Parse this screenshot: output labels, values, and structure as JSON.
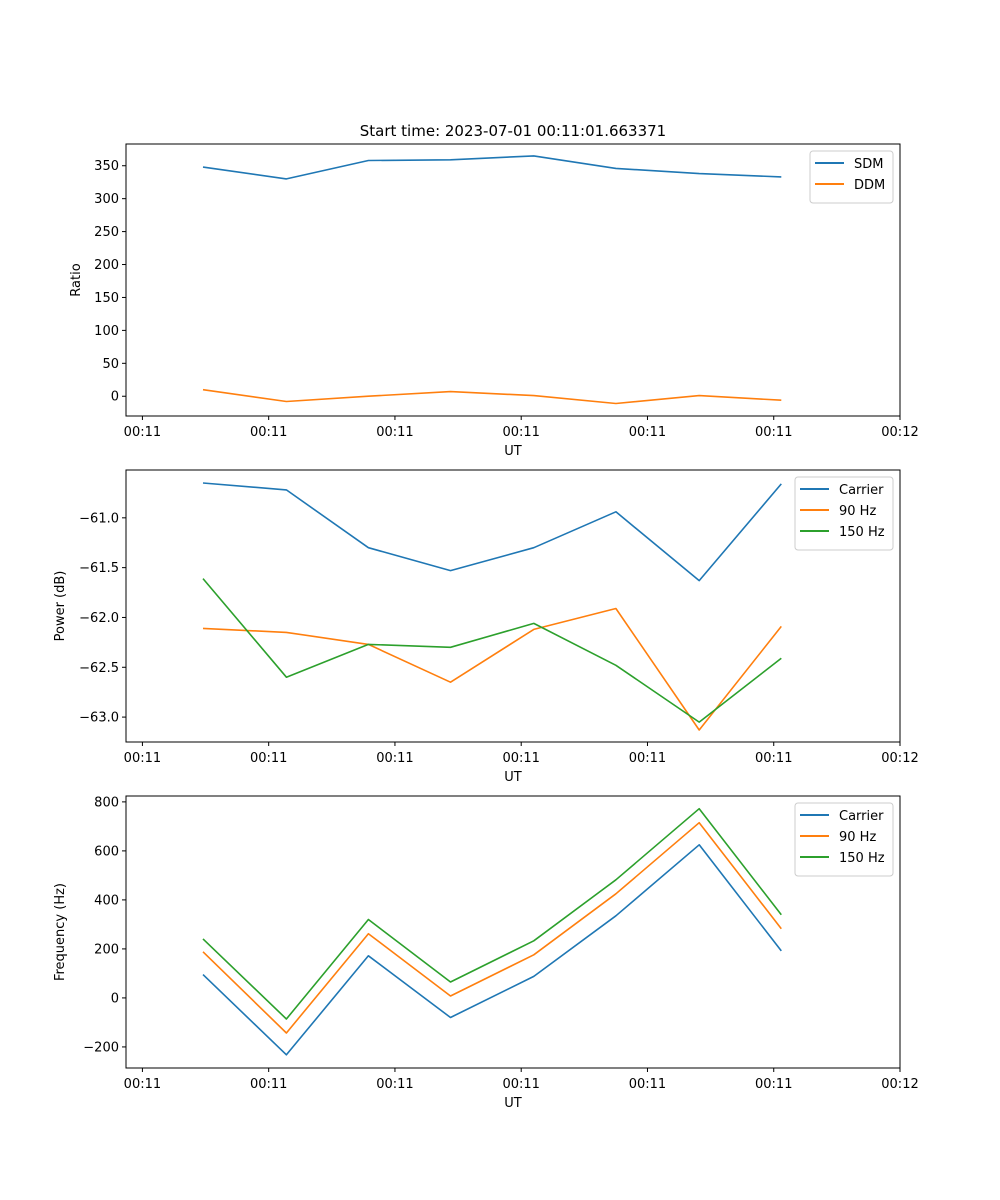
{
  "figure": {
    "title": "Start time: 2023-07-01 00:11:01.663371"
  },
  "chart_data": [
    {
      "type": "line",
      "title": "Start time: 2023-07-01 00:11:01.663371",
      "xlabel": "UT",
      "ylabel": "Ratio",
      "x_tick_labels": [
        "00:11",
        "00:11",
        "00:11",
        "00:11",
        "00:11",
        "00:11",
        "00:12"
      ],
      "x_range": [
        -0.13,
        6.0
      ],
      "x": [
        0.48,
        1.14,
        1.79,
        2.44,
        3.1,
        3.75,
        4.41,
        5.06
      ],
      "ylim": [
        -30,
        383
      ],
      "y_ticks": [
        0,
        50,
        100,
        150,
        200,
        250,
        300,
        350
      ],
      "y_tick_labels": [
        "0",
        "50",
        "100",
        "150",
        "200",
        "250",
        "300",
        "350"
      ],
      "grid": false,
      "legend": "top-right",
      "series": [
        {
          "name": "SDM",
          "color": "#1f77b4",
          "values": [
            348,
            330,
            358,
            359,
            365,
            346,
            338,
            333
          ]
        },
        {
          "name": "DDM",
          "color": "#ff7f0e",
          "values": [
            10,
            -8,
            0,
            7,
            1,
            -11,
            1,
            -6
          ]
        }
      ]
    },
    {
      "type": "line",
      "title": "",
      "xlabel": "UT",
      "ylabel": "Power (dB)",
      "x_tick_labels": [
        "00:11",
        "00:11",
        "00:11",
        "00:11",
        "00:11",
        "00:11",
        "00:12"
      ],
      "x_range": [
        -0.13,
        6.0
      ],
      "x": [
        0.48,
        1.14,
        1.79,
        2.44,
        3.1,
        3.75,
        4.41,
        5.06
      ],
      "ylim": [
        -63.25,
        -60.52
      ],
      "y_ticks": [
        -61.0,
        -61.5,
        -62.0,
        -62.5,
        -63.0
      ],
      "y_tick_labels": [
        "−61.0",
        "−61.5",
        "−62.0",
        "−62.5",
        "−63.0"
      ],
      "grid": false,
      "legend": "top-right",
      "series": [
        {
          "name": "Carrier",
          "color": "#1f77b4",
          "values": [
            -60.65,
            -60.72,
            -61.3,
            -61.53,
            -61.3,
            -60.94,
            -61.63,
            -60.66
          ]
        },
        {
          "name": "90 Hz",
          "color": "#ff7f0e",
          "values": [
            -62.11,
            -62.15,
            -62.27,
            -62.65,
            -62.12,
            -61.91,
            -63.13,
            -62.09
          ]
        },
        {
          "name": "150 Hz",
          "color": "#2ca02c",
          "values": [
            -61.61,
            -62.6,
            -62.27,
            -62.3,
            -62.06,
            -62.48,
            -63.05,
            -62.41
          ]
        }
      ]
    },
    {
      "type": "line",
      "title": "",
      "xlabel": "UT",
      "ylabel": "Frequency (Hz)",
      "x_tick_labels": [
        "00:11",
        "00:11",
        "00:11",
        "00:11",
        "00:11",
        "00:11",
        "00:12"
      ],
      "x_range": [
        -0.13,
        6.0
      ],
      "x": [
        0.48,
        1.14,
        1.79,
        2.44,
        3.1,
        3.75,
        4.41,
        5.06
      ],
      "ylim": [
        -286,
        824
      ],
      "y_ticks": [
        -200,
        0,
        200,
        400,
        600,
        800
      ],
      "y_tick_labels": [
        "−200",
        "0",
        "200",
        "400",
        "600",
        "800"
      ],
      "grid": false,
      "legend": "top-right",
      "series": [
        {
          "name": "Carrier",
          "color": "#1f77b4",
          "values": [
            95,
            -232,
            172,
            -80,
            88,
            335,
            625,
            192
          ]
        },
        {
          "name": "90 Hz",
          "color": "#ff7f0e",
          "values": [
            188,
            -143,
            262,
            8,
            176,
            425,
            715,
            282
          ]
        },
        {
          "name": "150 Hz",
          "color": "#2ca02c",
          "values": [
            241,
            -86,
            320,
            65,
            233,
            482,
            772,
            339
          ]
        }
      ]
    }
  ]
}
